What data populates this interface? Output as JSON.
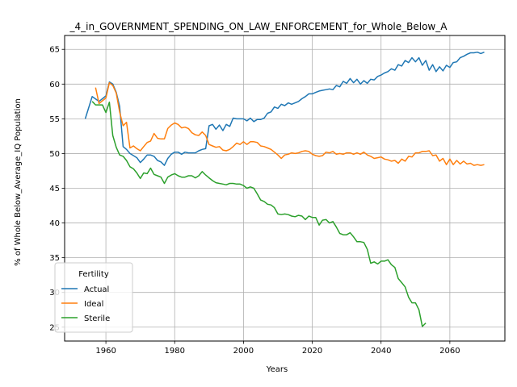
{
  "chart_data": {
    "type": "line",
    "title": "_4_in_GOVERNMENT_SPENDING_ON_LAW_ENFORCEMENT_for_Whole_Below_A",
    "xlabel": "Years",
    "ylabel": "% of Whole Below_Average_IQ Population",
    "xlim": [
      1948,
      2076
    ],
    "ylim": [
      23,
      67
    ],
    "xticks": [
      1960,
      1980,
      2000,
      2020,
      2040,
      2060
    ],
    "yticks": [
      25,
      30,
      35,
      40,
      45,
      50,
      55,
      60,
      65
    ],
    "grid": true,
    "legend": {
      "title": "Fertility",
      "placement": "lower-left"
    },
    "series": [
      {
        "name": "Actual",
        "color": "#1f77b4",
        "x": [
          1954,
          1956,
          1958,
          1960,
          1961,
          1962,
          1963,
          1964,
          1965,
          1966,
          1967,
          1968,
          1969,
          1970,
          1971,
          1972,
          1973,
          1974,
          1975,
          1976,
          1977,
          1978,
          1979,
          1980,
          1981,
          1982,
          1983,
          1984,
          1985,
          1986,
          1987,
          1988,
          1989,
          1990,
          1991,
          1992,
          1993,
          1994,
          1995,
          1996,
          1997,
          1998,
          1999,
          2000,
          2001,
          2002,
          2003,
          2004,
          2005,
          2006,
          2007,
          2008,
          2009,
          2010,
          2011,
          2012,
          2013,
          2014,
          2015,
          2016,
          2017,
          2018,
          2019,
          2020,
          2021,
          2022,
          2023,
          2024,
          2025,
          2026,
          2027,
          2028,
          2029,
          2030,
          2031,
          2032,
          2033,
          2034,
          2035,
          2036,
          2037,
          2038,
          2039,
          2040,
          2041,
          2042,
          2043,
          2044,
          2045,
          2046,
          2047,
          2048,
          2049,
          2050,
          2051,
          2052,
          2053,
          2054,
          2055,
          2056,
          2057,
          2058,
          2059,
          2060,
          2061,
          2062,
          2063,
          2064,
          2065,
          2066,
          2067,
          2068,
          2069,
          2070
        ],
        "y": [
          55.0,
          58.2,
          57.5,
          58.3,
          60.3,
          60.0,
          58.8,
          56.8,
          51.0,
          50.6,
          50.0,
          49.7,
          49.4,
          48.7,
          49.2,
          49.8,
          49.8,
          49.6,
          49.0,
          48.8,
          48.3,
          49.3,
          49.9,
          50.2,
          50.2,
          49.9,
          50.2,
          50.1,
          50.1,
          50.1,
          50.4,
          50.6,
          50.7,
          54.0,
          54.2,
          53.5,
          54.1,
          53.3,
          54.2,
          53.9,
          55.1,
          55.0,
          55.0,
          55.0,
          54.7,
          55.1,
          54.6,
          54.9,
          54.9,
          55.1,
          55.8,
          56.0,
          56.7,
          56.5,
          57.1,
          56.9,
          57.3,
          57.1,
          57.3,
          57.5,
          57.9,
          58.2,
          58.6,
          58.6,
          58.8,
          59.0,
          59.1,
          59.2,
          59.3,
          59.2,
          59.8,
          59.6,
          60.4,
          60.1,
          60.8,
          60.2,
          60.7,
          60.0,
          60.5,
          60.1,
          60.7,
          60.6,
          61.1,
          61.3,
          61.6,
          61.8,
          62.2,
          62.0,
          62.8,
          62.6,
          63.4,
          63.1,
          63.8,
          63.2,
          63.8,
          62.7,
          63.4,
          62.0,
          62.8,
          61.8,
          62.5,
          61.9,
          62.7,
          62.4,
          63.1,
          63.2,
          63.8,
          64.0,
          64.3,
          64.5,
          64.5,
          64.6,
          64.4,
          64.6
        ]
      },
      {
        "name": "Ideal",
        "color": "#ff7f0e",
        "x": [
          1957,
          1958,
          1959,
          1960,
          1961,
          1962,
          1963,
          1964,
          1965,
          1966,
          1967,
          1968,
          1969,
          1970,
          1971,
          1972,
          1973,
          1974,
          1975,
          1976,
          1977,
          1978,
          1979,
          1980,
          1981,
          1982,
          1983,
          1984,
          1985,
          1986,
          1987,
          1988,
          1989,
          1990,
          1991,
          1992,
          1993,
          1994,
          1995,
          1996,
          1997,
          1998,
          1999,
          2000,
          2001,
          2002,
          2003,
          2004,
          2005,
          2006,
          2007,
          2008,
          2009,
          2010,
          2011,
          2012,
          2013,
          2014,
          2015,
          2016,
          2017,
          2018,
          2019,
          2020,
          2021,
          2022,
          2023,
          2024,
          2025,
          2026,
          2027,
          2028,
          2029,
          2030,
          2031,
          2032,
          2033,
          2034,
          2035,
          2036,
          2037,
          2038,
          2039,
          2040,
          2041,
          2042,
          2043,
          2044,
          2045,
          2046,
          2047,
          2048,
          2049,
          2050,
          2051,
          2052,
          2053,
          2054,
          2055,
          2056,
          2057,
          2058,
          2059,
          2060,
          2061,
          2062,
          2063,
          2064,
          2065,
          2066,
          2067,
          2068,
          2069,
          2070
        ],
        "y": [
          59.5,
          57.2,
          57.6,
          58.0,
          60.2,
          59.8,
          58.7,
          56.0,
          54.0,
          54.5,
          50.8,
          51.1,
          50.7,
          50.4,
          51.0,
          51.6,
          51.8,
          52.9,
          52.2,
          52.1,
          52.1,
          53.6,
          54.1,
          54.4,
          54.2,
          53.7,
          53.8,
          53.6,
          53.0,
          52.7,
          52.6,
          53.1,
          52.6,
          51.3,
          51.1,
          50.9,
          51.0,
          50.5,
          50.4,
          50.6,
          51.0,
          51.5,
          51.3,
          51.7,
          51.3,
          51.7,
          51.7,
          51.6,
          51.1,
          51.0,
          50.8,
          50.6,
          50.2,
          49.8,
          49.3,
          49.8,
          49.9,
          50.1,
          50.0,
          50.1,
          50.3,
          50.4,
          50.3,
          49.9,
          49.7,
          49.6,
          49.7,
          50.2,
          50.1,
          50.3,
          49.9,
          50.0,
          49.9,
          50.1,
          50.1,
          49.9,
          50.1,
          49.9,
          50.2,
          49.8,
          49.6,
          49.3,
          49.4,
          49.5,
          49.2,
          49.1,
          48.9,
          49.0,
          48.6,
          49.2,
          48.9,
          49.6,
          49.5,
          50.1,
          50.1,
          50.3,
          50.3,
          50.4,
          49.7,
          49.8,
          48.9,
          49.3,
          48.4,
          49.2,
          48.4,
          49.0,
          48.5,
          48.9,
          48.5,
          48.6,
          48.3,
          48.4,
          48.3,
          48.4
        ]
      },
      {
        "name": "Sterile",
        "color": "#2ca02c",
        "x": [
          1956,
          1957,
          1958,
          1959,
          1960,
          1961,
          1962,
          1963,
          1964,
          1965,
          1966,
          1967,
          1968,
          1969,
          1970,
          1971,
          1972,
          1973,
          1974,
          1975,
          1976,
          1977,
          1978,
          1979,
          1980,
          1981,
          1982,
          1983,
          1984,
          1985,
          1986,
          1987,
          1988,
          1989,
          1990,
          1991,
          1992,
          1993,
          1994,
          1995,
          1996,
          1997,
          1998,
          1999,
          2000,
          2001,
          2002,
          2003,
          2004,
          2005,
          2006,
          2007,
          2008,
          2009,
          2010,
          2011,
          2012,
          2013,
          2014,
          2015,
          2016,
          2017,
          2018,
          2019,
          2020,
          2021,
          2022,
          2023,
          2024,
          2025,
          2026,
          2027,
          2028,
          2029,
          2030,
          2031,
          2032,
          2033,
          2034,
          2035,
          2036,
          2037,
          2038,
          2039,
          2040,
          2041,
          2042,
          2043,
          2044,
          2045,
          2046,
          2047,
          2048,
          2049,
          2050,
          2051,
          2052,
          2053
        ],
        "y": [
          57.5,
          57.0,
          57.0,
          57.0,
          55.9,
          57.4,
          52.6,
          50.9,
          49.8,
          49.6,
          49.0,
          48.1,
          47.8,
          47.2,
          46.4,
          47.2,
          47.1,
          47.9,
          47.0,
          46.8,
          46.6,
          45.7,
          46.6,
          46.9,
          47.1,
          46.8,
          46.6,
          46.6,
          46.8,
          46.8,
          46.5,
          46.8,
          47.4,
          46.9,
          46.5,
          46.1,
          45.8,
          45.7,
          45.6,
          45.5,
          45.7,
          45.7,
          45.6,
          45.6,
          45.4,
          45.0,
          45.2,
          45.0,
          44.2,
          43.3,
          43.1,
          42.7,
          42.6,
          42.2,
          41.3,
          41.2,
          41.3,
          41.2,
          41.0,
          40.9,
          41.1,
          41.0,
          40.5,
          41.0,
          40.8,
          40.8,
          39.7,
          40.4,
          40.5,
          40.0,
          40.2,
          39.4,
          38.5,
          38.3,
          38.3,
          38.6,
          38.0,
          37.3,
          37.3,
          37.2,
          36.2,
          34.2,
          34.4,
          34.1,
          34.5,
          34.5,
          34.7,
          34.0,
          33.6,
          32.0,
          31.4,
          30.8,
          29.3,
          28.5,
          28.5,
          27.5,
          25.1,
          25.6
        ]
      }
    ]
  }
}
